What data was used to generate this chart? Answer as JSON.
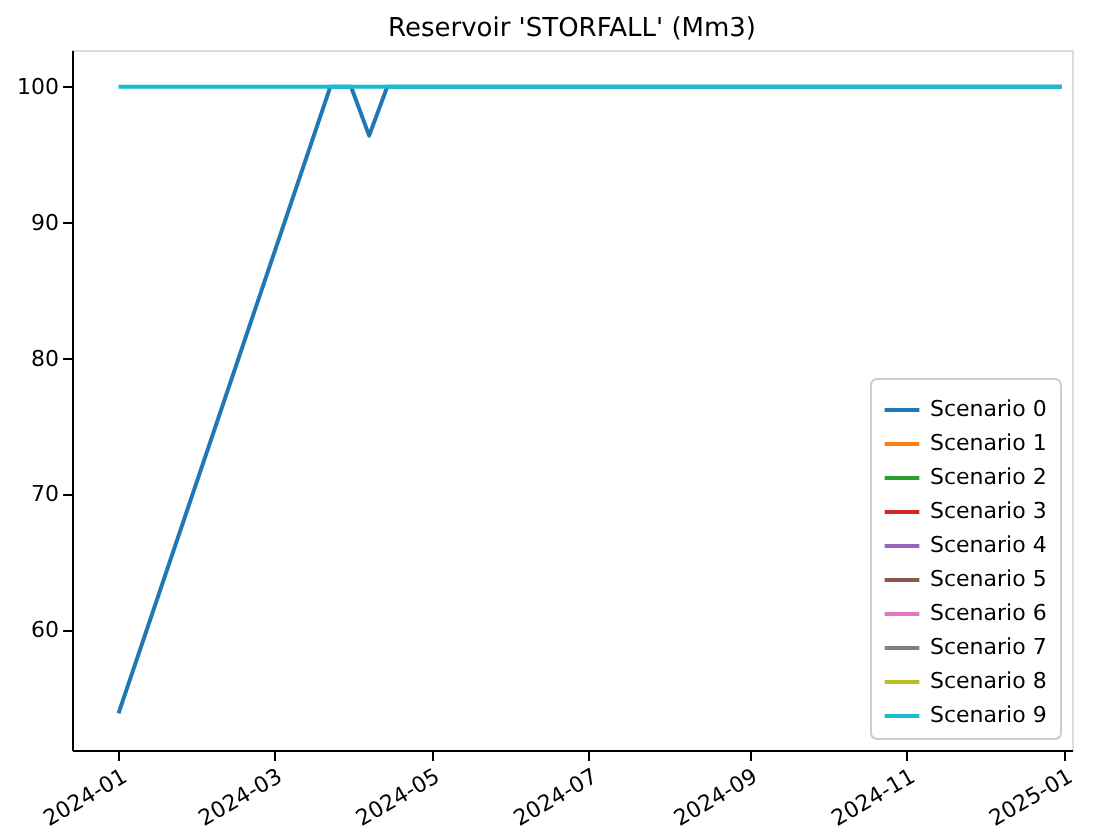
{
  "chart_data": {
    "type": "line",
    "title": "Reservoir 'STORFALL' (Mm3)",
    "series": [
      {
        "name": "Scenario 0",
        "color": "#1f77b4",
        "x": [
          "2024-01-01",
          "2024-03-23",
          "2024-03-31",
          "2024-04-07",
          "2024-04-14",
          "2024-12-31"
        ],
        "values": [
          53.9,
          100,
          100,
          96.4,
          100,
          100
        ]
      },
      {
        "name": "Scenario 1",
        "color": "#ff7f0e"
      },
      {
        "name": "Scenario 2",
        "color": "#2ca02c"
      },
      {
        "name": "Scenario 3",
        "color": "#d62728"
      },
      {
        "name": "Scenario 4",
        "color": "#9467bd"
      },
      {
        "name": "Scenario 5",
        "color": "#8c564b"
      },
      {
        "name": "Scenario 6",
        "color": "#e377c2"
      },
      {
        "name": "Scenario 7",
        "color": "#7f7f7f"
      },
      {
        "name": "Scenario 8",
        "color": "#bcbd22"
      },
      {
        "name": "Scenario 9",
        "color": "#17becf",
        "x": [
          "2024-01-01",
          "2024-12-31"
        ],
        "values": [
          100,
          100
        ]
      }
    ],
    "xlim": [
      "2023-12-14",
      "2025-01-04"
    ],
    "xticks": [
      {
        "value": "2024-01-01",
        "label": "2024-01"
      },
      {
        "value": "2024-03-01",
        "label": "2024-03"
      },
      {
        "value": "2024-05-01",
        "label": "2024-05"
      },
      {
        "value": "2024-07-01",
        "label": "2024-07"
      },
      {
        "value": "2024-09-01",
        "label": "2024-09"
      },
      {
        "value": "2024-11-01",
        "label": "2024-11"
      },
      {
        "value": "2025-01-01",
        "label": "2025-01"
      }
    ],
    "ylim": [
      51.2,
      102.7
    ],
    "yticks": [
      60,
      70,
      80,
      90,
      100
    ],
    "grid": false,
    "legend": "bottom right",
    "line_style": "solid",
    "marker": "none"
  }
}
